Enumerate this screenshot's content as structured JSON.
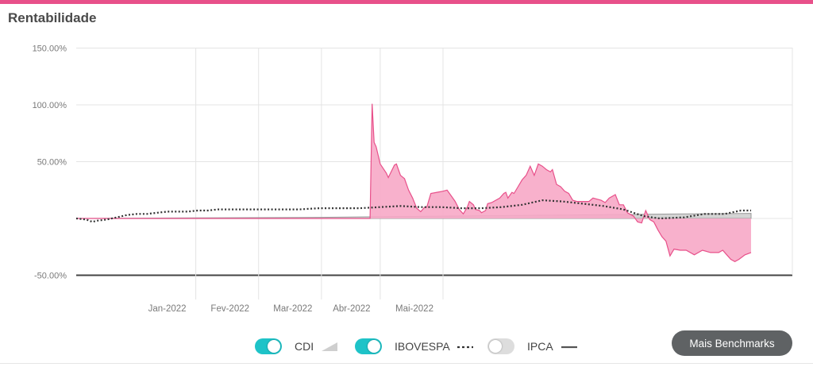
{
  "title": "Rentabilidade",
  "colors": {
    "accent": "#e8508a",
    "area_fill": "#f7a9c6",
    "area_stroke": "#e8508a",
    "ibovespa": "#333333",
    "cdi": "#bdbdbd",
    "ipca": "#555555",
    "toggle_on": "#1ec3c8",
    "toggle_off": "#dddddd"
  },
  "legend": [
    {
      "label": "CDI",
      "enabled": true,
      "symbol": "area-icon"
    },
    {
      "label": "IBOVESPA",
      "enabled": true,
      "symbol": "dotted-line-icon"
    },
    {
      "label": "IPCA",
      "enabled": false,
      "symbol": "solid-line-icon"
    }
  ],
  "more_button": "Mais Benchmarks",
  "chart_data": {
    "type": "area",
    "y_ticks": [
      "150.00%",
      "100.00%",
      "50.00%",
      "-50.00%"
    ],
    "x_ticks": [
      "Jan-2022",
      "Fev-2022",
      "Mar-2022",
      "Abr-2022",
      "Mai-2022"
    ],
    "ylim": [
      -50,
      150
    ],
    "grid": true,
    "series": [
      {
        "values": [
          [
            0,
            0
          ],
          [
            40,
            0
          ],
          [
            80,
            0
          ],
          [
            120,
            0
          ],
          [
            140,
            0
          ],
          [
            145,
            0
          ],
          [
            146,
            101
          ],
          [
            147,
            67
          ],
          [
            148,
            63
          ],
          [
            150,
            48
          ],
          [
            153,
            40
          ],
          [
            154,
            36
          ],
          [
            157,
            47
          ],
          [
            158,
            48
          ],
          [
            160,
            38
          ],
          [
            162,
            35
          ],
          [
            164,
            25
          ],
          [
            166,
            18
          ],
          [
            168,
            9
          ],
          [
            170,
            6
          ],
          [
            172,
            10
          ],
          [
            173,
            10
          ],
          [
            175,
            22
          ],
          [
            178,
            23
          ],
          [
            181,
            24
          ],
          [
            183,
            25
          ],
          [
            185,
            20
          ],
          [
            187,
            15
          ],
          [
            189,
            8
          ],
          [
            191,
            4
          ],
          [
            193,
            10
          ],
          [
            194,
            15
          ],
          [
            196,
            12
          ],
          [
            197,
            8
          ],
          [
            199,
            7
          ],
          [
            200,
            5
          ],
          [
            202,
            7
          ],
          [
            203,
            13
          ],
          [
            205,
            14
          ],
          [
            207,
            16
          ],
          [
            209,
            18
          ],
          [
            210,
            20
          ],
          [
            211,
            22
          ],
          [
            212,
            23
          ],
          [
            213,
            18
          ],
          [
            215,
            23
          ],
          [
            216,
            22
          ],
          [
            218,
            28
          ],
          [
            220,
            34
          ],
          [
            222,
            38
          ],
          [
            224,
            46
          ],
          [
            226,
            38
          ],
          [
            228,
            48
          ],
          [
            230,
            46
          ],
          [
            232,
            43
          ],
          [
            234,
            41
          ],
          [
            235,
            43
          ],
          [
            237,
            30
          ],
          [
            239,
            28
          ],
          [
            241,
            24
          ],
          [
            243,
            22
          ],
          [
            245,
            16
          ],
          [
            247,
            15
          ],
          [
            250,
            15
          ],
          [
            253,
            15
          ],
          [
            255,
            18
          ],
          [
            257,
            17
          ],
          [
            259,
            16
          ],
          [
            261,
            14
          ],
          [
            263,
            18
          ],
          [
            266,
            21
          ],
          [
            268,
            12
          ],
          [
            270,
            12
          ],
          [
            272,
            5
          ],
          [
            275,
            2
          ],
          [
            277,
            -3
          ],
          [
            279,
            -4
          ],
          [
            281,
            7
          ],
          [
            283,
            -1
          ],
          [
            285,
            -3
          ],
          [
            287,
            -10
          ],
          [
            289,
            -16
          ],
          [
            291,
            -20
          ],
          [
            293,
            -33
          ],
          [
            295,
            -27
          ],
          [
            298,
            -28
          ],
          [
            301,
            -28
          ],
          [
            305,
            -32
          ],
          [
            309,
            -28
          ],
          [
            313,
            -30
          ],
          [
            317,
            -30
          ],
          [
            319,
            -28
          ],
          [
            321,
            -32
          ],
          [
            323,
            -36
          ],
          [
            325,
            -38
          ],
          [
            327,
            -36
          ],
          [
            330,
            -32
          ],
          [
            333,
            -30
          ]
        ]
      },
      {
        "name": "IBOVESPA",
        "values": [
          [
            0,
            0
          ],
          [
            5,
            -1
          ],
          [
            8,
            -3
          ],
          [
            10,
            -2
          ],
          [
            15,
            -1
          ],
          [
            20,
            1
          ],
          [
            25,
            3
          ],
          [
            30,
            4
          ],
          [
            35,
            4
          ],
          [
            40,
            5
          ],
          [
            45,
            6
          ],
          [
            50,
            6
          ],
          [
            55,
            6
          ],
          [
            60,
            7
          ],
          [
            65,
            7
          ],
          [
            70,
            8
          ],
          [
            75,
            8
          ],
          [
            80,
            8
          ],
          [
            90,
            8
          ],
          [
            100,
            8
          ],
          [
            110,
            8
          ],
          [
            120,
            9
          ],
          [
            130,
            9
          ],
          [
            140,
            9
          ],
          [
            150,
            10
          ],
          [
            160,
            11
          ],
          [
            170,
            10
          ],
          [
            180,
            10
          ],
          [
            190,
            9
          ],
          [
            200,
            9
          ],
          [
            210,
            10
          ],
          [
            220,
            12
          ],
          [
            230,
            16
          ],
          [
            240,
            15
          ],
          [
            250,
            13
          ],
          [
            260,
            11
          ],
          [
            270,
            8
          ],
          [
            280,
            2
          ],
          [
            288,
            0
          ],
          [
            300,
            1
          ],
          [
            310,
            4
          ],
          [
            320,
            4
          ],
          [
            328,
            7
          ],
          [
            333,
            7
          ]
        ]
      },
      {
        "name": "CDI",
        "values": [
          [
            0,
            0
          ],
          [
            60,
            0.5
          ],
          [
            120,
            1
          ],
          [
            180,
            2
          ],
          [
            240,
            3
          ],
          [
            300,
            4
          ],
          [
            333,
            4.5
          ]
        ]
      }
    ]
  }
}
